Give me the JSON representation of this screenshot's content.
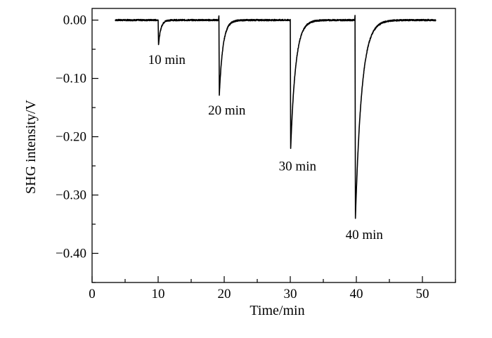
{
  "chart_data": {
    "type": "line",
    "title": "",
    "xlabel": "Time/min",
    "ylabel": "SHG intensity/V",
    "xlim": [
      0,
      55
    ],
    "ylim": [
      -0.45,
      0.02
    ],
    "x_ticks": [
      {
        "value": 0,
        "label": "0"
      },
      {
        "value": 10,
        "label": "10"
      },
      {
        "value": 20,
        "label": "20"
      },
      {
        "value": 30,
        "label": "30"
      },
      {
        "value": 40,
        "label": "40"
      },
      {
        "value": 50,
        "label": "50"
      }
    ],
    "y_ticks": [
      {
        "value": 0.0,
        "label": "0.00"
      },
      {
        "value": -0.1,
        "label": "−0.10"
      },
      {
        "value": -0.2,
        "label": "−0.20"
      },
      {
        "value": -0.3,
        "label": "−0.30"
      },
      {
        "value": -0.4,
        "label": "−0.40"
      }
    ],
    "x_minor_step": 5,
    "y_minor_step": 0.05,
    "grid": false,
    "series": [
      {
        "color": "#000000",
        "x_range": [
          3.5,
          52.0
        ],
        "events": [
          {
            "time": 10.0,
            "depth": -0.042,
            "spike": 0.0,
            "recovery_tau": 0.35
          },
          {
            "time": 19.2,
            "depth": -0.128,
            "spike": 0.007,
            "recovery_tau": 0.55
          },
          {
            "time": 30.0,
            "depth": -0.22,
            "spike": 0.0,
            "recovery_tau": 0.75
          },
          {
            "time": 39.8,
            "depth": -0.34,
            "spike": 0.008,
            "recovery_tau": 0.95
          }
        ]
      }
    ],
    "annotations": [
      {
        "text": "10 min",
        "x": 11.3,
        "y": -0.075
      },
      {
        "text": "20 min",
        "x": 20.4,
        "y": -0.162
      },
      {
        "text": "30 min",
        "x": 31.1,
        "y": -0.258
      },
      {
        "text": "40 min",
        "x": 41.2,
        "y": -0.375
      }
    ]
  }
}
